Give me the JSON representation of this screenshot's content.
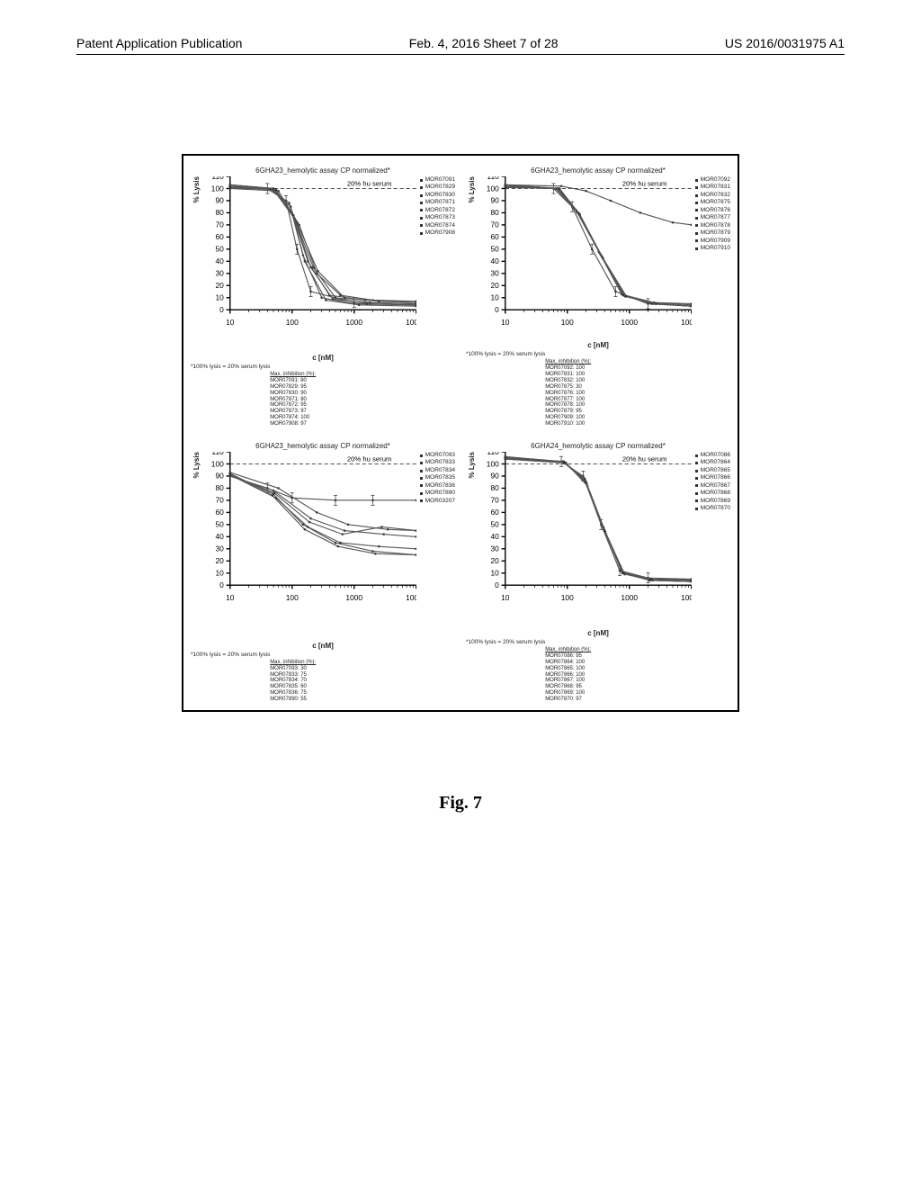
{
  "header": {
    "left": "Patent Application Publication",
    "center": "Feb. 4, 2016  Sheet 7 of 28",
    "right": "US 2016/0031975 A1"
  },
  "caption": "Fig. 7",
  "axes": {
    "ylabel": "% Lysis",
    "xlabel": "c [nM]",
    "ylim": [
      0,
      110
    ],
    "ytick_step": 10,
    "xlim": [
      10,
      10000
    ],
    "xticks": [
      10,
      100,
      1000,
      10000
    ],
    "xscale": "log",
    "serum_line_label": "20% hu serum",
    "footnote": "*100% lysis = 20% serum lysis",
    "background_color": "#ffffff",
    "axis_color": "#000000",
    "grid_color": "#cccccc",
    "curve_color": "#555555",
    "serum_line_dash": "3,2"
  },
  "panels": [
    {
      "title": "6GHA23_hemolytic assay CP normalized*",
      "legend": [
        "MOR07091",
        "MOR07829",
        "MOR07830",
        "MOR07871",
        "MOR07872",
        "MOR07873",
        "MOR07874",
        "MOR07908"
      ],
      "max_inhibition": {
        "header": "Max. inhibition (%):",
        "rows": [
          "MOR07091: 80",
          "MOR07829: 95",
          "MOR07830: 90",
          "MOR07871: 80",
          "MOR07872: 95",
          "MOR07873: 97",
          "MOR07874: 100",
          "MOR07908: 97"
        ]
      },
      "curves": [
        [
          [
            10,
            102
          ],
          [
            40,
            100
          ],
          [
            80,
            90
          ],
          [
            120,
            50
          ],
          [
            200,
            15
          ],
          [
            1000,
            6
          ],
          [
            10000,
            5
          ]
        ],
        [
          [
            10,
            101
          ],
          [
            40,
            100
          ],
          [
            90,
            88
          ],
          [
            150,
            45
          ],
          [
            300,
            10
          ],
          [
            1000,
            5
          ],
          [
            10000,
            4
          ]
        ],
        [
          [
            10,
            103
          ],
          [
            50,
            100
          ],
          [
            100,
            80
          ],
          [
            180,
            40
          ],
          [
            400,
            12
          ],
          [
            1500,
            8
          ],
          [
            10000,
            6
          ]
        ],
        [
          [
            10,
            100
          ],
          [
            60,
            98
          ],
          [
            130,
            70
          ],
          [
            250,
            30
          ],
          [
            600,
            12
          ],
          [
            2000,
            8
          ],
          [
            10000,
            7
          ]
        ],
        [
          [
            10,
            102
          ],
          [
            50,
            99
          ],
          [
            110,
            75
          ],
          [
            220,
            35
          ],
          [
            500,
            10
          ],
          [
            1800,
            6
          ],
          [
            10000,
            5
          ]
        ],
        [
          [
            10,
            101
          ],
          [
            55,
            99
          ],
          [
            120,
            72
          ],
          [
            260,
            32
          ],
          [
            700,
            10
          ],
          [
            2500,
            7
          ],
          [
            10000,
            6
          ]
        ],
        [
          [
            10,
            100
          ],
          [
            45,
            100
          ],
          [
            95,
            85
          ],
          [
            160,
            40
          ],
          [
            350,
            8
          ],
          [
            1200,
            4
          ],
          [
            10000,
            3
          ]
        ],
        [
          [
            10,
            103
          ],
          [
            50,
            100
          ],
          [
            105,
            78
          ],
          [
            200,
            35
          ],
          [
            450,
            9
          ],
          [
            1600,
            5
          ],
          [
            10000,
            4
          ]
        ]
      ]
    },
    {
      "title": "6GHA23_hemolytic assay CP normalized*",
      "legend": [
        "MOR07092",
        "MOR07831",
        "MOR07832",
        "MOR07875",
        "MOR07876",
        "MOR07877",
        "MOR07878",
        "MOR07879",
        "MOR07909",
        "MOR07910"
      ],
      "max_inhibition": {
        "header": "Max. inhibition (%):",
        "rows": [
          "MOR07092: 100",
          "MOR07831: 100",
          "MOR07832: 100",
          "MOR07875: 30",
          "MOR07876: 100",
          "MOR07877: 100",
          "MOR07878: 100",
          "MOR07879: 95",
          "MOR07909: 100",
          "MOR07910: 100"
        ]
      },
      "curves": [
        [
          [
            10,
            103
          ],
          [
            60,
            100
          ],
          [
            120,
            85
          ],
          [
            250,
            50
          ],
          [
            600,
            15
          ],
          [
            2000,
            5
          ],
          [
            10000,
            3
          ]
        ],
        [
          [
            10,
            102
          ],
          [
            70,
            100
          ],
          [
            150,
            80
          ],
          [
            350,
            45
          ],
          [
            800,
            12
          ],
          [
            2500,
            5
          ],
          [
            10000,
            3
          ]
        ],
        [
          [
            10,
            101
          ],
          [
            65,
            100
          ],
          [
            140,
            82
          ],
          [
            320,
            48
          ],
          [
            750,
            13
          ],
          [
            2200,
            6
          ],
          [
            10000,
            4
          ]
        ],
        [
          [
            10,
            103
          ],
          [
            80,
            102
          ],
          [
            200,
            98
          ],
          [
            500,
            90
          ],
          [
            1500,
            80
          ],
          [
            5000,
            72
          ],
          [
            10000,
            70
          ]
        ],
        [
          [
            10,
            102
          ],
          [
            75,
            100
          ],
          [
            160,
            78
          ],
          [
            380,
            42
          ],
          [
            900,
            11
          ],
          [
            2800,
            5
          ],
          [
            10000,
            3
          ]
        ],
        [
          [
            10,
            101
          ],
          [
            68,
            100
          ],
          [
            145,
            80
          ],
          [
            340,
            46
          ],
          [
            820,
            12
          ],
          [
            2400,
            5
          ],
          [
            10000,
            3
          ]
        ],
        [
          [
            10,
            103
          ],
          [
            72,
            100
          ],
          [
            155,
            79
          ],
          [
            360,
            44
          ],
          [
            860,
            11
          ],
          [
            2600,
            5
          ],
          [
            10000,
            3
          ]
        ],
        [
          [
            10,
            102
          ],
          [
            70,
            100
          ],
          [
            150,
            80
          ],
          [
            350,
            45
          ],
          [
            840,
            12
          ],
          [
            2500,
            6
          ],
          [
            10000,
            5
          ]
        ],
        [
          [
            10,
            101
          ],
          [
            66,
            100
          ],
          [
            142,
            81
          ],
          [
            330,
            47
          ],
          [
            790,
            12
          ],
          [
            2300,
            5
          ],
          [
            10000,
            3
          ]
        ],
        [
          [
            10,
            103
          ],
          [
            74,
            100
          ],
          [
            158,
            79
          ],
          [
            370,
            43
          ],
          [
            880,
            11
          ],
          [
            2700,
            5
          ],
          [
            10000,
            3
          ]
        ]
      ]
    },
    {
      "title": "6GHA23_hemolytic assay CP normalized*",
      "legend": [
        "MOR07093",
        "MOR07833",
        "MOR07834",
        "MOR07835",
        "MOR07836",
        "MOR07890",
        "MOR03207"
      ],
      "max_inhibition": {
        "header": "Max. inhibition (%):",
        "rows": [
          "MOR07093: 30",
          "MOR07833: 75",
          "MOR07834: 70",
          "MOR07835: 60",
          "MOR07836: 75",
          "MOR07890: 55"
        ]
      },
      "curves": [
        [
          [
            10,
            90
          ],
          [
            40,
            80
          ],
          [
            100,
            72
          ],
          [
            500,
            70
          ],
          [
            2000,
            70
          ],
          [
            10000,
            70
          ]
        ],
        [
          [
            10,
            92
          ],
          [
            50,
            75
          ],
          [
            150,
            50
          ],
          [
            500,
            35
          ],
          [
            2000,
            28
          ],
          [
            10000,
            25
          ]
        ],
        [
          [
            10,
            91
          ],
          [
            55,
            72
          ],
          [
            180,
            48
          ],
          [
            600,
            35
          ],
          [
            2500,
            32
          ],
          [
            10000,
            30
          ]
        ],
        [
          [
            10,
            90
          ],
          [
            50,
            78
          ],
          [
            200,
            55
          ],
          [
            700,
            45
          ],
          [
            3000,
            42
          ],
          [
            10000,
            40
          ]
        ],
        [
          [
            10,
            92
          ],
          [
            48,
            74
          ],
          [
            160,
            46
          ],
          [
            550,
            32
          ],
          [
            2200,
            26
          ],
          [
            10000,
            25
          ]
        ],
        [
          [
            10,
            91
          ],
          [
            52,
            76
          ],
          [
            190,
            52
          ],
          [
            650,
            42
          ],
          [
            2800,
            48
          ],
          [
            10000,
            45
          ]
        ],
        [
          [
            10,
            93
          ],
          [
            60,
            80
          ],
          [
            250,
            60
          ],
          [
            800,
            50
          ],
          [
            3500,
            46
          ],
          [
            10000,
            45
          ]
        ]
      ]
    },
    {
      "title": "6GHA24_hemolytic assay CP normalized*",
      "legend": [
        "MOR07086",
        "MOR07864",
        "MOR07865",
        "MOR07866",
        "MOR07867",
        "MOR07868",
        "MOR07869",
        "MOR07870"
      ],
      "max_inhibition": {
        "header": "Max. inhibition (%):",
        "rows": [
          "MOR07086: 95",
          "MOR07864: 100",
          "MOR07865: 100",
          "MOR07866: 100",
          "MOR07867: 100",
          "MOR07868: 95",
          "MOR07869: 100",
          "MOR07870: 97"
        ]
      },
      "curves": [
        [
          [
            10,
            105
          ],
          [
            80,
            102
          ],
          [
            180,
            90
          ],
          [
            350,
            50
          ],
          [
            700,
            12
          ],
          [
            2000,
            6
          ],
          [
            10000,
            5
          ]
        ],
        [
          [
            10,
            104
          ],
          [
            90,
            101
          ],
          [
            200,
            85
          ],
          [
            400,
            45
          ],
          [
            800,
            10
          ],
          [
            2200,
            4
          ],
          [
            10000,
            3
          ]
        ],
        [
          [
            10,
            106
          ],
          [
            85,
            102
          ],
          [
            190,
            88
          ],
          [
            380,
            48
          ],
          [
            760,
            11
          ],
          [
            2100,
            5
          ],
          [
            10000,
            4
          ]
        ],
        [
          [
            10,
            105
          ],
          [
            95,
            101
          ],
          [
            210,
            82
          ],
          [
            420,
            42
          ],
          [
            840,
            9
          ],
          [
            2400,
            4
          ],
          [
            10000,
            3
          ]
        ],
        [
          [
            10,
            104
          ],
          [
            88,
            102
          ],
          [
            195,
            86
          ],
          [
            390,
            46
          ],
          [
            780,
            10
          ],
          [
            2150,
            5
          ],
          [
            10000,
            4
          ]
        ],
        [
          [
            10,
            106
          ],
          [
            92,
            101
          ],
          [
            205,
            84
          ],
          [
            410,
            44
          ],
          [
            820,
            10
          ],
          [
            2300,
            5
          ],
          [
            10000,
            5
          ]
        ],
        [
          [
            10,
            105
          ],
          [
            86,
            102
          ],
          [
            192,
            87
          ],
          [
            385,
            47
          ],
          [
            770,
            10
          ],
          [
            2120,
            4
          ],
          [
            10000,
            3
          ]
        ],
        [
          [
            10,
            104
          ],
          [
            90,
            101
          ],
          [
            200,
            85
          ],
          [
            400,
            45
          ],
          [
            800,
            10
          ],
          [
            2200,
            5
          ],
          [
            10000,
            4
          ]
        ]
      ]
    }
  ]
}
